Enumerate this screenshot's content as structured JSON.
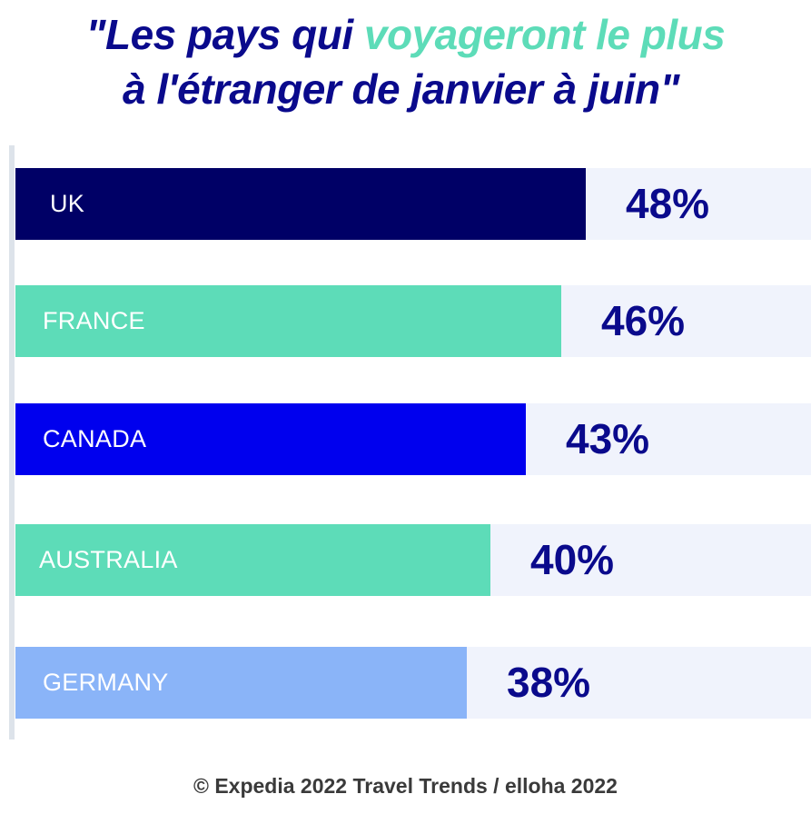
{
  "header": {
    "title_part1": "\"Les pays qui ",
    "title_accent": "voyageront le plus",
    "title_part2": "à l'étranger  de janvier à juin\""
  },
  "footer": {
    "text": "© Expedia 2022 Travel Trends / elloha 2022"
  },
  "colors": {
    "title": "#0a0a8c",
    "accent": "#5ddcb8",
    "value": "#0a0a8c",
    "track": "#f0f3fc"
  },
  "chart_data": {
    "type": "bar",
    "orientation": "horizontal",
    "categories": [
      "UK",
      "FRANCE",
      "CANADA",
      "AUSTRALIA",
      "GERMANY"
    ],
    "values": [
      48,
      46,
      43,
      40,
      38
    ],
    "value_labels": [
      "48%",
      "46%",
      "43%",
      "40%",
      "38%"
    ],
    "bar_colors": [
      "#000066",
      "#5ddcb8",
      "#0000ee",
      "#5ddcb8",
      "#8ab4f8"
    ],
    "xlim": [
      0,
      67
    ],
    "grid": false,
    "legend": "none"
  }
}
